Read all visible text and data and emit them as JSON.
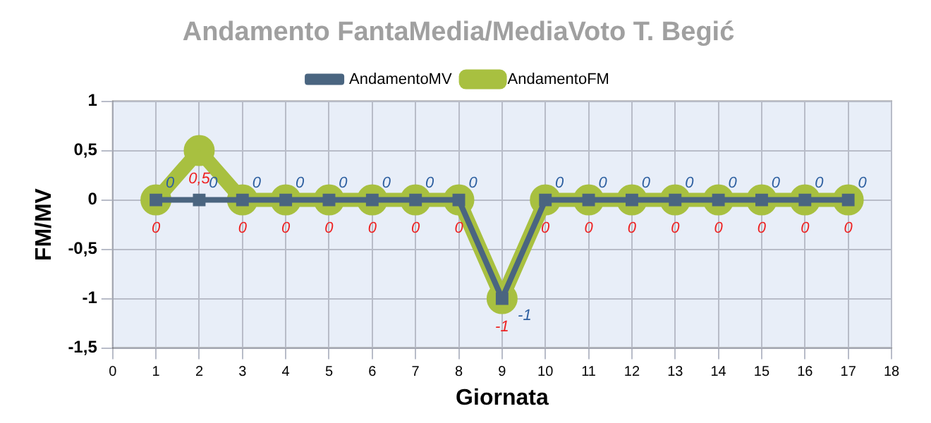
{
  "chart_data": {
    "type": "line",
    "title": "Andamento FantaMedia/MediaVoto T. Begić",
    "xlabel": "Giornata",
    "ylabel": "FM/MV",
    "x": [
      1,
      2,
      3,
      4,
      5,
      6,
      7,
      8,
      9,
      10,
      11,
      12,
      13,
      14,
      15,
      16,
      17
    ],
    "series": [
      {
        "name": "AndamentoMV",
        "color": "#4a6580",
        "marker": "square",
        "values": [
          0,
          0,
          0,
          0,
          0,
          0,
          0,
          0,
          -1,
          0,
          0,
          0,
          0,
          0,
          0,
          0,
          0
        ],
        "value_labels": [
          "0",
          "0",
          "0",
          "0",
          "0",
          "0",
          "0",
          "0",
          "-1",
          "0",
          "0",
          "0",
          "0",
          "0",
          "0",
          "0",
          "0"
        ]
      },
      {
        "name": "AndamentoFM",
        "color": "#a8c040",
        "marker": "circle",
        "values": [
          0,
          0.5,
          0,
          0,
          0,
          0,
          0,
          0,
          -1,
          0,
          0,
          0,
          0,
          0,
          0,
          0,
          0
        ],
        "value_labels": [
          "0",
          "0,5",
          "0",
          "0",
          "0",
          "0",
          "0",
          "0",
          "-1",
          "0",
          "0",
          "0",
          "0",
          "0",
          "0",
          "0",
          "0"
        ]
      }
    ],
    "xlim": [
      0,
      18
    ],
    "xticks": [
      0,
      1,
      2,
      3,
      4,
      5,
      6,
      7,
      8,
      9,
      10,
      11,
      12,
      13,
      14,
      15,
      16,
      17,
      18
    ],
    "ylim": [
      -1.5,
      1
    ],
    "yticks": [
      {
        "value": -1.5,
        "label": "-1,5"
      },
      -1,
      {
        "value": -0.5,
        "label": "-0,5"
      },
      0,
      {
        "value": 0.5,
        "label": "0,5"
      },
      1
    ],
    "grid": true,
    "legend": "top"
  }
}
